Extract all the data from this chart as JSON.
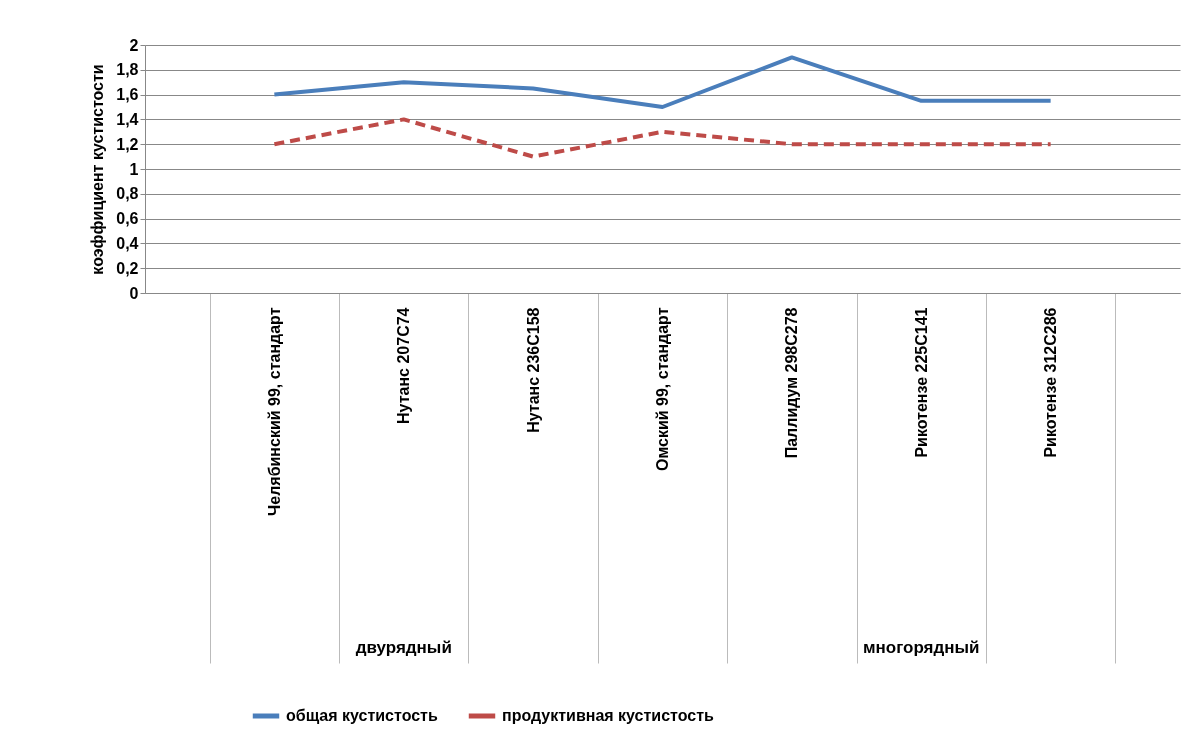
{
  "chart_data": {
    "type": "line",
    "ylabel": "коэффициент кустистости",
    "categories": [
      "Челябинский 99, стандарт",
      "Нутанс 207С74",
      "Нутанс 236С158",
      "Омский 99, стандарт",
      "Паллидум 298С278",
      "Рикотензе 225С141",
      "Рикотензе 312С286"
    ],
    "series": [
      {
        "name": "общая кустистость",
        "color": "#4a7ebb",
        "line_style": "solid",
        "values": [
          1.6,
          1.7,
          1.65,
          1.5,
          1.9,
          1.55,
          1.55
        ]
      },
      {
        "name": "продуктивная кустистость",
        "color": "#be4b48",
        "line_style": "dashed",
        "values": [
          1.2,
          1.4,
          1.1,
          1.3,
          1.2,
          1.2,
          1.2
        ]
      }
    ],
    "ylim": [
      0,
      2
    ],
    "yticks": [
      0,
      {
        "value": 0.2,
        "label": "0,2"
      },
      {
        "value": 0.4,
        "label": "0,4"
      },
      {
        "value": 0.6,
        "label": "0,6"
      },
      {
        "value": 0.8,
        "label": "0,8"
      },
      1,
      {
        "value": 1.2,
        "label": "1,2"
      },
      {
        "value": 1.4,
        "label": "1,4"
      },
      {
        "value": 1.6,
        "label": "1,6"
      },
      {
        "value": 1.8,
        "label": "1,8"
      },
      2
    ],
    "grid": "y",
    "legend": "bottom",
    "annotations": [
      "двурядный",
      "многорядный"
    ]
  }
}
